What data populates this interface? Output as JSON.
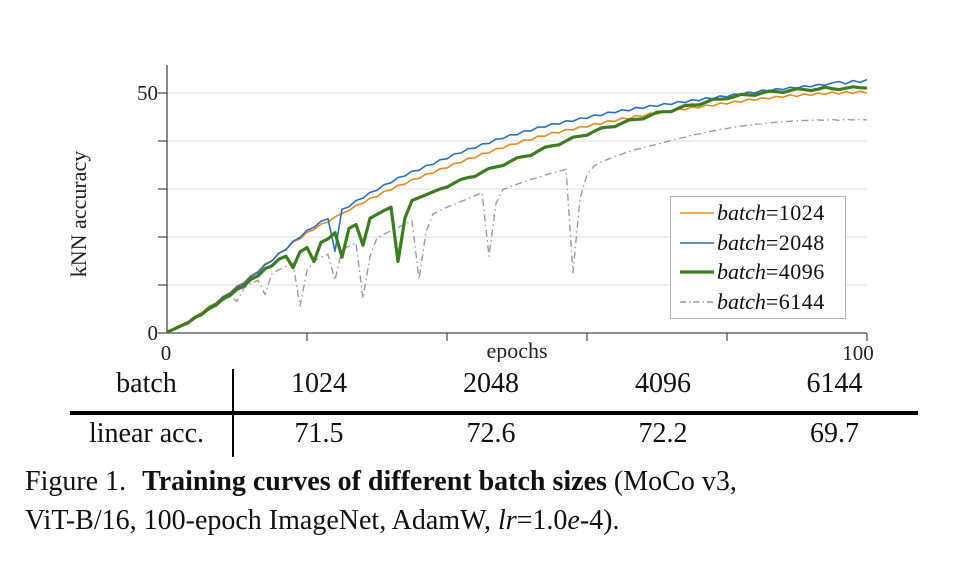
{
  "chart_data": {
    "type": "line",
    "title": "",
    "xlabel": "epochs",
    "ylabel": "kNN accuracy",
    "xlim": [
      0,
      100
    ],
    "ylim": [
      0,
      55
    ],
    "x_ticks": [
      0,
      20,
      40,
      60,
      80,
      100
    ],
    "x_tick_labels_shown": [
      "0",
      "100"
    ],
    "y_ticks": [
      0,
      10,
      20,
      30,
      40,
      50
    ],
    "y_tick_labels_shown": [
      "0",
      "50"
    ],
    "grid": "horizontal-only",
    "legend_position": "right-middle-inside",
    "x_step": 1,
    "series": [
      {
        "name": "batch=1024",
        "label_var": "batch",
        "label_rest": "=1024",
        "color": "#E8891C",
        "style": "solid",
        "width": 1.6,
        "values": [
          0.3,
          1.0,
          1.7,
          2.4,
          3.5,
          4.3,
          5.5,
          6.3,
          7.6,
          8.4,
          9.8,
          10.5,
          12.0,
          12.8,
          14.4,
          15.1,
          16.7,
          17.3,
          19.0,
          19.6,
          21.0,
          21.5,
          22.7,
          23.1,
          24.2,
          24.9,
          25.5,
          26.6,
          27.0,
          28.1,
          28.4,
          29.5,
          29.8,
          30.8,
          31.0,
          32.0,
          32.2,
          33.1,
          33.3,
          34.2,
          34.4,
          35.3,
          35.5,
          36.4,
          36.5,
          37.4,
          37.5,
          38.4,
          38.5,
          39.3,
          39.4,
          40.2,
          40.2,
          41.0,
          41.0,
          41.8,
          41.7,
          42.4,
          42.3,
          43.0,
          42.9,
          43.6,
          43.5,
          44.2,
          44.1,
          44.8,
          44.6,
          45.3,
          45.1,
          45.8,
          45.6,
          46.2,
          46.0,
          46.7,
          46.5,
          47.1,
          46.9,
          47.5,
          47.3,
          47.9,
          47.7,
          48.3,
          48.1,
          48.7,
          48.5,
          49.0,
          48.8,
          49.3,
          49.1,
          49.6,
          49.3,
          49.8,
          49.5,
          50.0,
          49.7,
          50.2,
          49.8,
          50.3,
          49.9,
          50.4,
          50.0
        ]
      },
      {
        "name": "batch=2048",
        "label_var": "batch",
        "label_rest": "=2048",
        "color": "#2B6FC4",
        "style": "solid",
        "width": 1.6,
        "values": [
          0.3,
          0.9,
          1.6,
          2.2,
          3.4,
          4.1,
          5.4,
          6.1,
          7.5,
          8.2,
          9.6,
          10.3,
          11.8,
          12.6,
          14.2,
          15.0,
          16.6,
          17.4,
          19.1,
          19.9,
          21.4,
          22.0,
          23.3,
          23.8,
          17.0,
          25.8,
          26.3,
          27.6,
          28.1,
          29.3,
          29.7,
          30.9,
          31.3,
          32.4,
          32.7,
          33.7,
          33.9,
          34.9,
          35.1,
          36.1,
          36.3,
          37.3,
          37.5,
          38.4,
          38.5,
          39.4,
          39.5,
          40.4,
          40.5,
          41.3,
          41.3,
          42.1,
          42.1,
          42.9,
          42.9,
          43.6,
          43.5,
          44.2,
          44.1,
          44.8,
          44.7,
          45.4,
          45.3,
          46.0,
          45.9,
          46.5,
          46.3,
          47.0,
          46.8,
          47.4,
          47.2,
          47.8,
          47.6,
          48.2,
          48.0,
          48.6,
          48.4,
          49.0,
          48.8,
          49.4,
          49.2,
          49.8,
          49.6,
          50.2,
          50.0,
          50.6,
          50.4,
          50.9,
          50.7,
          51.2,
          51.0,
          51.5,
          51.3,
          51.8,
          51.6,
          52.1,
          52.4,
          51.9,
          52.6,
          52.2,
          52.8
        ]
      },
      {
        "name": "batch=4096",
        "label_var": "batch",
        "label_rest": "=4096",
        "color": "#3C7D22",
        "style": "solid",
        "width": 3.2,
        "values": [
          0.2,
          0.8,
          1.5,
          2.1,
          3.2,
          3.9,
          5.1,
          5.8,
          7.1,
          7.8,
          9.1,
          9.8,
          11.2,
          11.9,
          13.4,
          14.0,
          15.4,
          16.0,
          13.6,
          16.9,
          17.8,
          14.9,
          18.9,
          19.6,
          20.9,
          15.8,
          21.8,
          22.6,
          18.3,
          23.9,
          24.7,
          25.5,
          26.2,
          14.9,
          24.0,
          27.6,
          28.2,
          28.8,
          29.4,
          30.0,
          30.4,
          31.2,
          32.0,
          32.4,
          32.6,
          33.5,
          34.3,
          34.6,
          34.9,
          35.7,
          36.5,
          36.8,
          37.0,
          37.9,
          38.7,
          39.0,
          39.2,
          40.0,
          40.8,
          41.0,
          41.2,
          42.0,
          42.7,
          42.9,
          43.0,
          43.7,
          44.4,
          44.5,
          44.6,
          45.3,
          46.0,
          46.1,
          46.1,
          46.8,
          47.4,
          47.5,
          47.5,
          48.1,
          48.7,
          48.7,
          48.8,
          49.2,
          49.7,
          49.6,
          49.5,
          50.0,
          50.4,
          50.3,
          50.1,
          50.5,
          50.9,
          50.7,
          50.5,
          50.8,
          51.2,
          50.9,
          50.7,
          51.0,
          51.3,
          51.1,
          51.0
        ]
      },
      {
        "name": "batch=6144",
        "label_var": "batch",
        "label_rest": "=6144",
        "color": "#9B9B9B",
        "style": "dashdot",
        "width": 1.4,
        "dash": "7 3.5 1.5 3.5",
        "values": [
          0.2,
          0.7,
          1.4,
          2.0,
          3.0,
          3.8,
          4.8,
          5.7,
          6.8,
          7.7,
          6.6,
          9.4,
          10.3,
          11.0,
          8.0,
          12.4,
          13.2,
          13.9,
          14.5,
          5.6,
          13.0,
          15.0,
          15.8,
          16.4,
          11.0,
          17.4,
          18.1,
          18.7,
          7.2,
          16.0,
          19.8,
          20.6,
          21.3,
          22.0,
          22.7,
          23.4,
          11.2,
          21.0,
          24.8,
          25.5,
          26.2,
          26.8,
          27.4,
          28.0,
          28.6,
          29.2,
          16.0,
          27.0,
          29.9,
          30.5,
          31.0,
          31.5,
          32.0,
          32.4,
          32.9,
          33.3,
          33.7,
          34.1,
          12.6,
          28.0,
          33.0,
          34.8,
          35.6,
          36.2,
          36.8,
          37.3,
          37.8,
          38.2,
          38.6,
          39.0,
          39.3,
          39.7,
          40.1,
          40.5,
          40.8,
          41.2,
          41.5,
          41.8,
          42.1,
          42.4,
          42.6,
          42.9,
          43.1,
          43.3,
          43.5,
          43.6,
          43.8,
          43.9,
          44.0,
          44.1,
          44.2,
          44.3,
          44.3,
          44.4,
          44.3,
          44.5,
          44.3,
          44.5,
          44.4,
          44.5,
          44.4
        ]
      }
    ]
  },
  "axis": {
    "y_top_label": "50",
    "y_bottom_label": "0",
    "x_left_label": "0",
    "x_right_label": "100",
    "xlabel": "epochs",
    "ylabel": "kNN accuracy"
  },
  "table": {
    "header_row": {
      "label": "batch",
      "values": [
        "1024",
        "2048",
        "4096",
        "6144"
      ]
    },
    "data_row": {
      "label": "linear acc.",
      "values": [
        "71.5",
        "72.6",
        "72.2",
        "69.7"
      ]
    }
  },
  "caption": {
    "figlabel": "Figure 1.",
    "bold": "Training curves of different batch sizes",
    "rest_line1": " (MoCo v3,",
    "line2_pre": "ViT-B/16, 100-epoch ImageNet, AdamW, ",
    "lr_italic": "lr",
    "eq": "=1.0",
    "e_italic": "e",
    "tail": "-4)."
  },
  "colors": {
    "axis": "#4a4a4a",
    "grid": "#dcdcdc",
    "rule": "#000000"
  }
}
